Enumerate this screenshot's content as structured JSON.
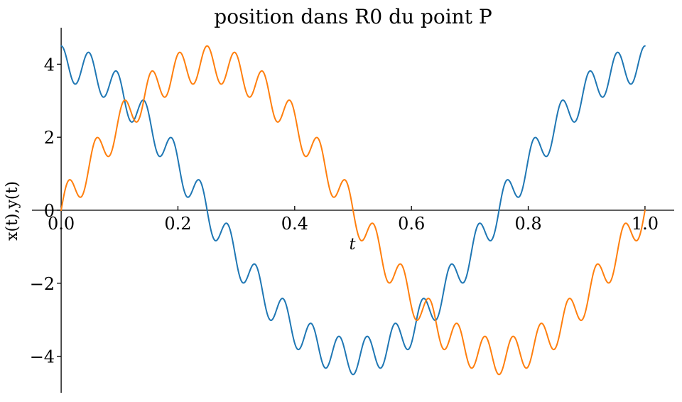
{
  "chart_data": {
    "type": "line",
    "title": "position dans R0 du point P",
    "xlabel": "t",
    "ylabel": "x(t),y(t)",
    "xlim": [
      -0.05,
      1.05
    ],
    "ylim": [
      -5,
      5
    ],
    "grid": false,
    "legend": null,
    "background": "#ffffff",
    "axis_color": "#000000",
    "spines_at_data_zero": true,
    "xticks": {
      "values": [
        0.0,
        0.2,
        0.4,
        0.6,
        0.8,
        1.0
      ],
      "labels": [
        "0.0",
        "0.2",
        "0.4",
        "0.6",
        "0.8",
        "1.0"
      ]
    },
    "yticks": {
      "values": [
        4,
        2,
        0,
        -2,
        -4
      ],
      "labels": [
        "4",
        "2",
        "0",
        "−2",
        "−4"
      ]
    },
    "series": [
      {
        "name": "x(t)",
        "color": "#1f77b4",
        "formula": "x(t) = 4·cos(2πt) + 0.5·cos(2π·21·t)",
        "terms": [
          {
            "amplitude": 4.0,
            "frequency": 1,
            "function": "cos"
          },
          {
            "amplitude": 0.5,
            "frequency": 21,
            "function": "cos"
          }
        ],
        "t_start": 0.0,
        "t_end": 1.0,
        "samples": 1600,
        "key_points": {
          "t0_value": 4.5,
          "max": 4.5,
          "min": -4.5,
          "min_at_t": 0.5,
          "t1_value": 4.5
        }
      },
      {
        "name": "y(t)",
        "color": "#ff7f0e",
        "formula": "y(t) = 4·sin(2πt) + 0.5·sin(2π·21·t)",
        "terms": [
          {
            "amplitude": 4.0,
            "frequency": 1,
            "function": "sin"
          },
          {
            "amplitude": 0.5,
            "frequency": 21,
            "function": "sin"
          }
        ],
        "t_start": 0.0,
        "t_end": 1.0,
        "samples": 1600,
        "key_points": {
          "t0_value": 0.0,
          "max": 4.5,
          "max_at_t": 0.25,
          "min": -4.5,
          "min_at_t": 0.75,
          "t1_value": 0.0
        }
      }
    ]
  }
}
